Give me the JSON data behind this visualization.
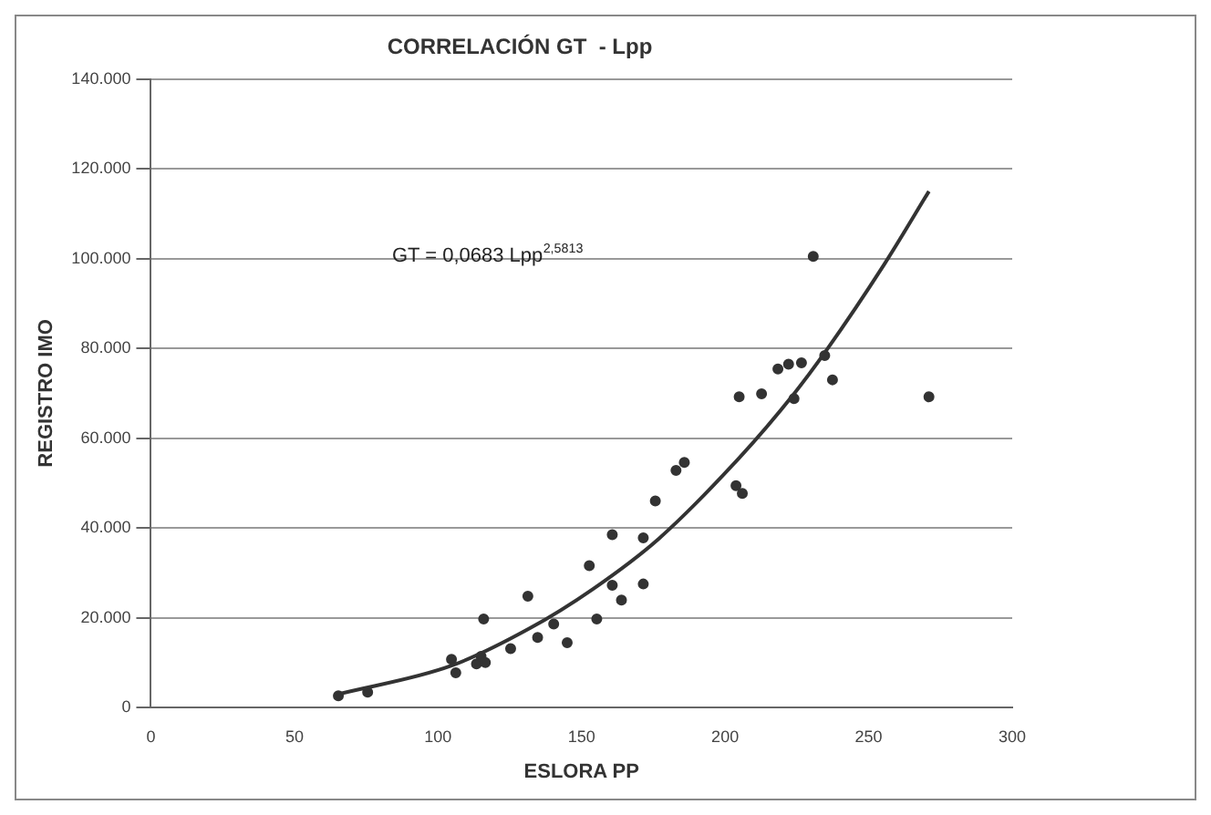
{
  "chart_data": {
    "type": "scatter",
    "title": "CORRELACIÓN GT  - Lpp",
    "xlabel": "ESLORA PP",
    "ylabel": "REGISTRO IMO",
    "annotations": [
      "GT = 0,0683 Lpp$^{2,5813}$"
    ],
    "series": [
      {
        "color": "#333333",
        "marker": "circle",
        "x": [
          65.3,
          75.5,
          104.7,
          106.2,
          113.4,
          115.9,
          115,
          116.5,
          125.3,
          131.3,
          134.7,
          140.3,
          145,
          152.7,
          155.3,
          160.7,
          160.7,
          163.9,
          171.5,
          171.5,
          175.7,
          182.9,
          185.8,
          204.9,
          203.8,
          206,
          212.7,
          218.4,
          222.1,
          226.6,
          224,
          230.7,
          234.7,
          237.4,
          271
        ],
        "values": [
          2600,
          3400,
          10700,
          7700,
          9700,
          19700,
          11400,
          10000,
          13100,
          24800,
          15600,
          18600,
          14400,
          31600,
          19700,
          38500,
          27200,
          23900,
          37800,
          27500,
          46000,
          52800,
          54600,
          69200,
          49400,
          47700,
          69900,
          75400,
          76500,
          76800,
          68800,
          100500,
          78400,
          73000,
          69200
        ]
      },
      {
        "type": "line",
        "color": "#333333",
        "marker": "none",
        "x": [
          65,
          104.7,
          131.6,
          154,
          176.9,
          204.9,
          224,
          235.2,
          255.3,
          271
        ],
        "values": [
          2900,
          9300,
          17500,
          26400,
          37600,
          55600,
          69900,
          79500,
          98600,
          115000
        ]
      }
    ],
    "xlim": [
      0,
      300
    ],
    "xticks": [
      0,
      50,
      100,
      150,
      200,
      250,
      300
    ],
    "ylim": [
      0,
      140000
    ],
    "yticks": [
      {
        "value": 0,
        "label": "0"
      },
      {
        "value": 20000,
        "label": "20.000"
      },
      {
        "value": 40000,
        "label": "40.000"
      },
      {
        "value": 60000,
        "label": "60.000"
      },
      {
        "value": 80000,
        "label": "80.000"
      },
      {
        "value": 100000,
        "label": "100.000"
      },
      {
        "value": 120000,
        "label": "120.000"
      },
      {
        "value": 140000,
        "label": "140.000"
      }
    ],
    "grid": "y",
    "legend": false
  }
}
